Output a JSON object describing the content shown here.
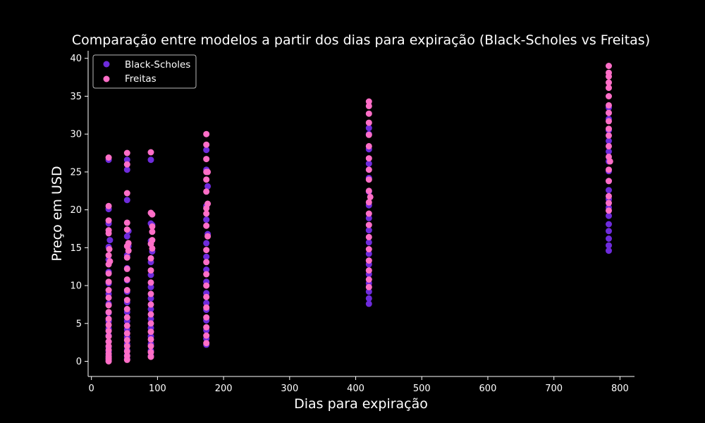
{
  "chart_data": {
    "type": "scatter",
    "title": "Comparação entre modelos a partir dos dias para expiração (Black-Scholes vs Freitas)",
    "xlabel": "Dias para expiração",
    "ylabel": "Preço em USD",
    "xlim": [
      -5,
      822
    ],
    "ylim": [
      -2,
      41
    ],
    "xticks": [
      0,
      100,
      200,
      300,
      400,
      500,
      600,
      700,
      800
    ],
    "yticks": [
      0,
      5,
      10,
      15,
      20,
      25,
      30,
      35,
      40
    ],
    "grid": false,
    "legend_position": "top-left",
    "background": "#000000",
    "series": [
      {
        "name": "Black-Scholes",
        "color": "#6e2bdc",
        "points": [
          [
            26,
            0.1
          ],
          [
            26,
            0.4
          ],
          [
            26,
            0.8
          ],
          [
            26,
            1.3
          ],
          [
            26,
            1.9
          ],
          [
            26,
            2.6
          ],
          [
            26,
            3.4
          ],
          [
            26,
            4.3
          ],
          [
            26,
            5.3
          ],
          [
            26,
            6.4
          ],
          [
            26,
            7.6
          ],
          [
            26,
            8.9
          ],
          [
            26,
            10.3
          ],
          [
            26,
            11.8
          ],
          [
            26,
            13.4
          ],
          [
            26,
            15.1
          ],
          [
            28,
            16.0
          ],
          [
            26,
            18.2
          ],
          [
            26,
            20.1
          ],
          [
            26,
            26.6
          ],
          [
            54,
            0.3
          ],
          [
            54,
            0.8
          ],
          [
            54,
            1.5
          ],
          [
            54,
            2.3
          ],
          [
            54,
            3.2
          ],
          [
            54,
            4.2
          ],
          [
            54,
            5.3
          ],
          [
            54,
            6.5
          ],
          [
            54,
            7.8
          ],
          [
            54,
            9.2
          ],
          [
            54,
            10.7
          ],
          [
            54,
            12.3
          ],
          [
            54,
            14.0
          ],
          [
            56,
            15.2
          ],
          [
            54,
            16.5
          ],
          [
            56,
            17.2
          ],
          [
            54,
            21.3
          ],
          [
            54,
            25.3
          ],
          [
            54,
            26.6
          ],
          [
            90,
            0.7
          ],
          [
            90,
            1.4
          ],
          [
            90,
            2.3
          ],
          [
            90,
            3.3
          ],
          [
            90,
            4.4
          ],
          [
            90,
            5.6
          ],
          [
            90,
            6.9
          ],
          [
            90,
            8.3
          ],
          [
            90,
            9.8
          ],
          [
            90,
            11.4
          ],
          [
            90,
            13.1
          ],
          [
            92,
            14.5
          ],
          [
            90,
            15.9
          ],
          [
            90,
            18.2
          ],
          [
            92,
            18.0
          ],
          [
            90,
            26.6
          ],
          [
            174,
            2.2
          ],
          [
            174,
            3.0
          ],
          [
            174,
            4.1
          ],
          [
            174,
            5.4
          ],
          [
            174,
            6.8
          ],
          [
            174,
            7.7
          ],
          [
            174,
            9.0
          ],
          [
            174,
            10.5
          ],
          [
            174,
            12.1
          ],
          [
            174,
            13.8
          ],
          [
            174,
            15.6
          ],
          [
            176,
            16.8
          ],
          [
            174,
            18.7
          ],
          [
            174,
            20.5
          ],
          [
            176,
            23.1
          ],
          [
            174,
            25.3
          ],
          [
            174,
            27.9
          ],
          [
            420,
            7.6
          ],
          [
            420,
            8.3
          ],
          [
            420,
            9.2
          ],
          [
            420,
            10.3
          ],
          [
            420,
            11.5
          ],
          [
            420,
            12.8
          ],
          [
            420,
            14.2
          ],
          [
            420,
            15.7
          ],
          [
            420,
            17.3
          ],
          [
            420,
            18.9
          ],
          [
            420,
            20.6
          ],
          [
            420,
            22.4
          ],
          [
            420,
            24.2
          ],
          [
            420,
            26.1
          ],
          [
            420,
            28.0
          ],
          [
            420,
            30.0
          ],
          [
            420,
            30.8
          ],
          [
            783,
            14.6
          ],
          [
            783,
            15.3
          ],
          [
            783,
            16.2
          ],
          [
            783,
            17.2
          ],
          [
            783,
            18.1
          ],
          [
            783,
            19.2
          ],
          [
            783,
            20.3
          ],
          [
            783,
            21.4
          ],
          [
            783,
            22.6
          ],
          [
            783,
            23.8
          ],
          [
            783,
            25.1
          ],
          [
            783,
            26.4
          ],
          [
            783,
            27.7
          ],
          [
            783,
            29.1
          ],
          [
            783,
            30.5
          ],
          [
            783,
            32.0
          ],
          [
            783,
            33.5
          ]
        ]
      },
      {
        "name": "Freitas",
        "color": "#ff6ec7",
        "points": [
          [
            26,
            0.0
          ],
          [
            26,
            0.3
          ],
          [
            26,
            0.6
          ],
          [
            26,
            1.0
          ],
          [
            26,
            1.5
          ],
          [
            26,
            2.0
          ],
          [
            26,
            2.6
          ],
          [
            26,
            3.3
          ],
          [
            26,
            4.0
          ],
          [
            26,
            4.8
          ],
          [
            26,
            5.6
          ],
          [
            26,
            6.5
          ],
          [
            26,
            7.4
          ],
          [
            26,
            8.4
          ],
          [
            26,
            9.4
          ],
          [
            26,
            10.5
          ],
          [
            26,
            11.6
          ],
          [
            26,
            12.8
          ],
          [
            26,
            14.0
          ],
          [
            27,
            14.8
          ],
          [
            26,
            16.9
          ],
          [
            26,
            17.3
          ],
          [
            26,
            18.6
          ],
          [
            26,
            20.5
          ],
          [
            26,
            26.9
          ],
          [
            28,
            13.2
          ],
          [
            54,
            0.2
          ],
          [
            54,
            0.7
          ],
          [
            54,
            1.3
          ],
          [
            54,
            2.0
          ],
          [
            54,
            2.8
          ],
          [
            54,
            3.7
          ],
          [
            54,
            4.7
          ],
          [
            54,
            5.8
          ],
          [
            54,
            6.9
          ],
          [
            54,
            8.1
          ],
          [
            54,
            9.4
          ],
          [
            54,
            10.8
          ],
          [
            54,
            12.2
          ],
          [
            54,
            13.7
          ],
          [
            56,
            14.6
          ],
          [
            54,
            15.2
          ],
          [
            56,
            15.6
          ],
          [
            54,
            17.4
          ],
          [
            54,
            18.3
          ],
          [
            54,
            22.2
          ],
          [
            54,
            26.0
          ],
          [
            54,
            27.5
          ],
          [
            90,
            0.6
          ],
          [
            90,
            1.2
          ],
          [
            90,
            2.0
          ],
          [
            90,
            2.9
          ],
          [
            90,
            3.9
          ],
          [
            90,
            5.0
          ],
          [
            90,
            6.2
          ],
          [
            90,
            7.5
          ],
          [
            90,
            8.9
          ],
          [
            90,
            10.4
          ],
          [
            90,
            12.0
          ],
          [
            90,
            13.6
          ],
          [
            92,
            14.9
          ],
          [
            90,
            15.5
          ],
          [
            92,
            16.0
          ],
          [
            92,
            17.1
          ],
          [
            92,
            17.8
          ],
          [
            90,
            19.6
          ],
          [
            92,
            19.4
          ],
          [
            90,
            27.6
          ],
          [
            174,
            2.4
          ],
          [
            174,
            3.4
          ],
          [
            174,
            4.5
          ],
          [
            174,
            5.8
          ],
          [
            174,
            7.1
          ],
          [
            174,
            8.5
          ],
          [
            174,
            10.0
          ],
          [
            174,
            11.5
          ],
          [
            174,
            13.1
          ],
          [
            174,
            14.7
          ],
          [
            176,
            16.5
          ],
          [
            174,
            17.9
          ],
          [
            174,
            19.5
          ],
          [
            174,
            20.2
          ],
          [
            176,
            20.8
          ],
          [
            174,
            22.4
          ],
          [
            174,
            24.0
          ],
          [
            174,
            25.0
          ],
          [
            176,
            25.0
          ],
          [
            174,
            26.7
          ],
          [
            174,
            28.6
          ],
          [
            174,
            30.0
          ],
          [
            420,
            9.8
          ],
          [
            420,
            10.8
          ],
          [
            420,
            12.0
          ],
          [
            420,
            13.3
          ],
          [
            420,
            14.8
          ],
          [
            420,
            16.4
          ],
          [
            420,
            18.0
          ],
          [
            420,
            19.5
          ],
          [
            420,
            21.0
          ],
          [
            422,
            21.7
          ],
          [
            420,
            22.5
          ],
          [
            420,
            24.0
          ],
          [
            420,
            25.3
          ],
          [
            420,
            26.8
          ],
          [
            420,
            28.4
          ],
          [
            420,
            29.9
          ],
          [
            420,
            31.5
          ],
          [
            420,
            32.7
          ],
          [
            420,
            33.7
          ],
          [
            420,
            34.3
          ],
          [
            783,
            19.9
          ],
          [
            783,
            20.9
          ],
          [
            783,
            21.8
          ],
          [
            783,
            23.8
          ],
          [
            783,
            25.3
          ],
          [
            785,
            26.4
          ],
          [
            783,
            27.0
          ],
          [
            783,
            28.4
          ],
          [
            783,
            29.8
          ],
          [
            783,
            30.7
          ],
          [
            783,
            31.7
          ],
          [
            783,
            32.8
          ],
          [
            783,
            33.8
          ],
          [
            783,
            35.0
          ],
          [
            783,
            36.1
          ],
          [
            783,
            36.8
          ],
          [
            783,
            37.6
          ],
          [
            783,
            38.1
          ],
          [
            783,
            39.0
          ]
        ]
      }
    ]
  }
}
